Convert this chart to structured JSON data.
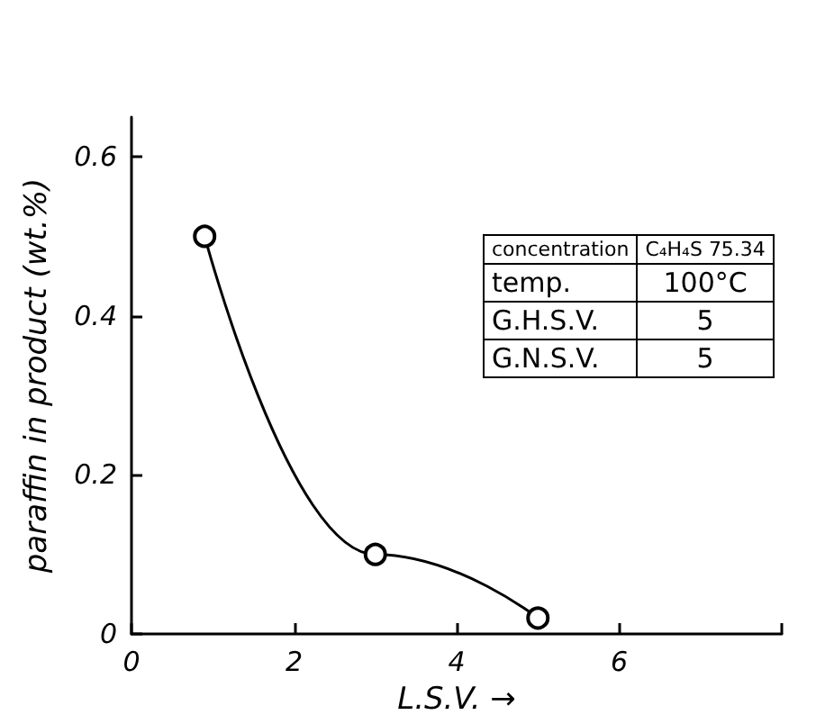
{
  "chart_data": {
    "type": "line",
    "xlabel": "L.S.V. →",
    "ylabel": "paraffin in product (wt.%)",
    "x": [
      0.9,
      3,
      5
    ],
    "series": [
      {
        "color": "#000000",
        "values": [
          0.5,
          0.1,
          0.02
        ]
      }
    ],
    "xlim": [
      0,
      8
    ],
    "xticks": [
      0,
      2,
      4,
      6,
      {
        "value": 8,
        "label": null
      }
    ],
    "ylim": [
      0,
      0.65
    ],
    "yticks": [
      0,
      0.2,
      0.4,
      0.6
    ],
    "marker": "circle",
    "line_style": "solid",
    "grid": false,
    "annotations": [
      "concentration",
      "C₄H₄S 75.34",
      "temp.",
      "100°C",
      "G.H.S.V.",
      "5",
      "G.N.S.V.",
      "5"
    ]
  }
}
